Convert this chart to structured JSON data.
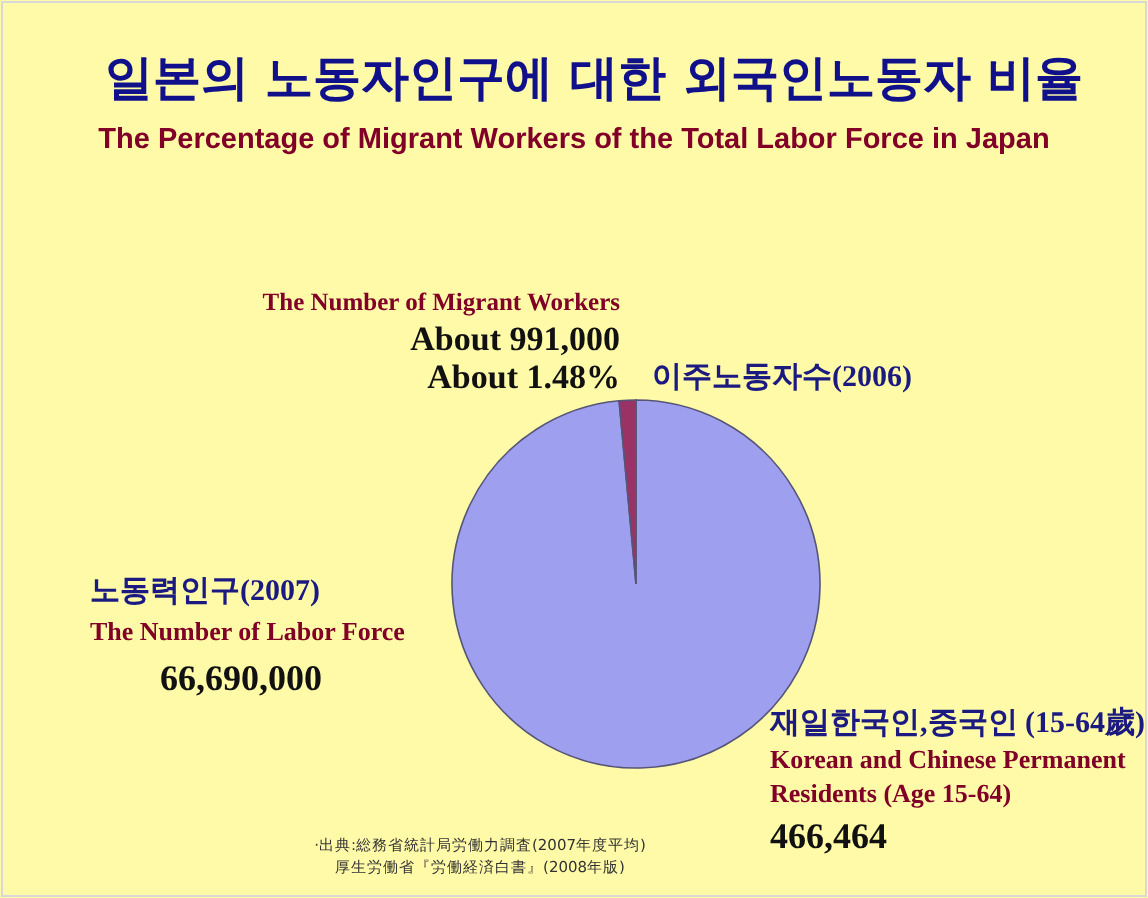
{
  "chart_data": {
    "type": "pie",
    "title": "일본의 노동자인구에 대한 외국인노동자 비율",
    "subtitle": "The Percentage of Migrant Workers of the Total Labor Force in Japan",
    "categories": [
      "노동력인구(2007)",
      "이주노동자수(2006)"
    ],
    "values": [
      66690000,
      991000
    ],
    "colors": [
      "#9f9ff0",
      "#993366"
    ],
    "value_labels": [
      "66,690,000",
      "About 991,000"
    ],
    "annotations": [
      "The Number of Labor Force",
      "The Number of Migrant Workers",
      "About 1.48%",
      "재일한국인,중국인 (15-64歲)",
      "Korean and Chinese Permanent",
      "Residents (Age 15-64)",
      "466,464",
      "·出典:総務省統計局労働力調査(2007年度平均)",
      "厚生労働省『労働経済白書』(2008年版)"
    ]
  }
}
